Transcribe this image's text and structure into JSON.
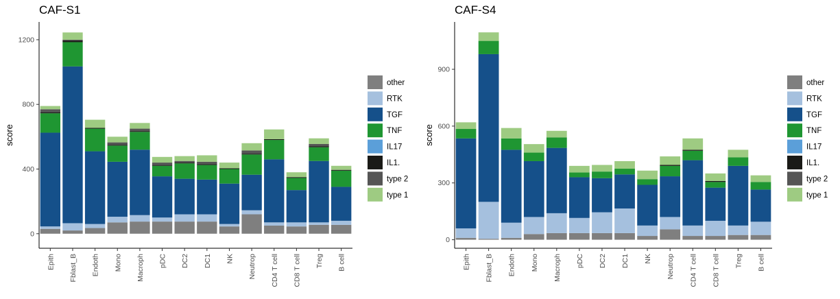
{
  "chart_data": [
    {
      "type": "bar",
      "stacked": true,
      "title": "CAF-S1",
      "xlabel": "",
      "ylabel": "score",
      "ylim": [
        -90,
        1310
      ],
      "yticks": [
        0,
        400,
        800,
        1200
      ],
      "categories": [
        "Epith",
        "Fblast_B",
        "Endoth",
        "Mono",
        "Macroph",
        "pDC",
        "DC2",
        "DC1",
        "NK",
        "Neutrop",
        "CD4 T cell",
        "CD8 T cell",
        "Treg",
        "B cell"
      ],
      "series": [
        {
          "name": "other",
          "values": [
            30,
            20,
            35,
            70,
            75,
            75,
            75,
            75,
            45,
            120,
            50,
            45,
            55,
            55
          ]
        },
        {
          "name": "RTK",
          "values": [
            15,
            45,
            25,
            35,
            40,
            25,
            45,
            45,
            15,
            25,
            20,
            25,
            15,
            25
          ]
        },
        {
          "name": "TGF",
          "values": [
            580,
            970,
            450,
            340,
            405,
            255,
            220,
            215,
            250,
            220,
            390,
            200,
            380,
            210
          ]
        },
        {
          "name": "TNF",
          "values": [
            120,
            150,
            140,
            100,
            110,
            65,
            95,
            90,
            90,
            125,
            120,
            75,
            85,
            100
          ]
        },
        {
          "name": "IL17",
          "values": [
            0,
            0,
            0,
            0,
            0,
            0,
            0,
            0,
            0,
            0,
            0,
            0,
            0,
            0
          ]
        },
        {
          "name": "IL1.",
          "values": [
            5,
            10,
            5,
            5,
            5,
            5,
            5,
            5,
            5,
            5,
            5,
            5,
            5,
            5
          ]
        },
        {
          "name": "type 2",
          "values": [
            20,
            5,
            0,
            15,
            15,
            15,
            10,
            15,
            0,
            20,
            0,
            0,
            15,
            0
          ]
        },
        {
          "name": "type 1",
          "values": [
            20,
            45,
            50,
            35,
            35,
            35,
            30,
            40,
            35,
            45,
            60,
            30,
            35,
            25
          ]
        }
      ],
      "legend_position": "right",
      "grid": false
    },
    {
      "type": "bar",
      "stacked": true,
      "title": "CAF-S4",
      "xlabel": "",
      "ylabel": "score",
      "ylim": [
        -45,
        1150
      ],
      "yticks": [
        0,
        300,
        600,
        900
      ],
      "categories": [
        "Epith",
        "Fblast_B",
        "Endoth",
        "Mono",
        "Macroph",
        "pDC",
        "DC2",
        "DC1",
        "NK",
        "Neutrop",
        "CD4 T cell",
        "CD8 T cell",
        "Treg",
        "B cell"
      ],
      "series": [
        {
          "name": "other",
          "values": [
            10,
            5,
            10,
            30,
            35,
            35,
            35,
            35,
            20,
            55,
            20,
            20,
            25,
            25
          ]
        },
        {
          "name": "RTK",
          "values": [
            50,
            195,
            80,
            90,
            105,
            80,
            110,
            130,
            55,
            65,
            55,
            80,
            50,
            70
          ]
        },
        {
          "name": "TGF",
          "values": [
            475,
            780,
            385,
            295,
            345,
            215,
            180,
            180,
            215,
            215,
            345,
            175,
            315,
            170
          ]
        },
        {
          "name": "TNF",
          "values": [
            50,
            70,
            60,
            45,
            55,
            25,
            35,
            30,
            30,
            55,
            50,
            30,
            45,
            40
          ]
        },
        {
          "name": "IL17",
          "values": [
            0,
            0,
            0,
            0,
            0,
            0,
            0,
            0,
            0,
            0,
            0,
            0,
            0,
            0
          ]
        },
        {
          "name": "IL1.",
          "values": [
            0,
            0,
            0,
            0,
            0,
            0,
            0,
            0,
            0,
            5,
            5,
            5,
            0,
            0
          ]
        },
        {
          "name": "type 2",
          "values": [
            0,
            0,
            0,
            0,
            0,
            0,
            0,
            0,
            0,
            0,
            0,
            0,
            0,
            0
          ]
        },
        {
          "name": "type 1",
          "values": [
            35,
            45,
            55,
            45,
            35,
            35,
            35,
            40,
            45,
            45,
            60,
            40,
            40,
            35
          ]
        }
      ],
      "legend_position": "right",
      "grid": false
    }
  ],
  "colors": {
    "other": "#7f7f7f",
    "RTK": "#a5c0de",
    "TGF": "#15508a",
    "TNF": "#1f9632",
    "IL17": "#5b9fd9",
    "IL1.": "#1a1a17",
    "type 2": "#555555",
    "type 1": "#9ecb82"
  }
}
